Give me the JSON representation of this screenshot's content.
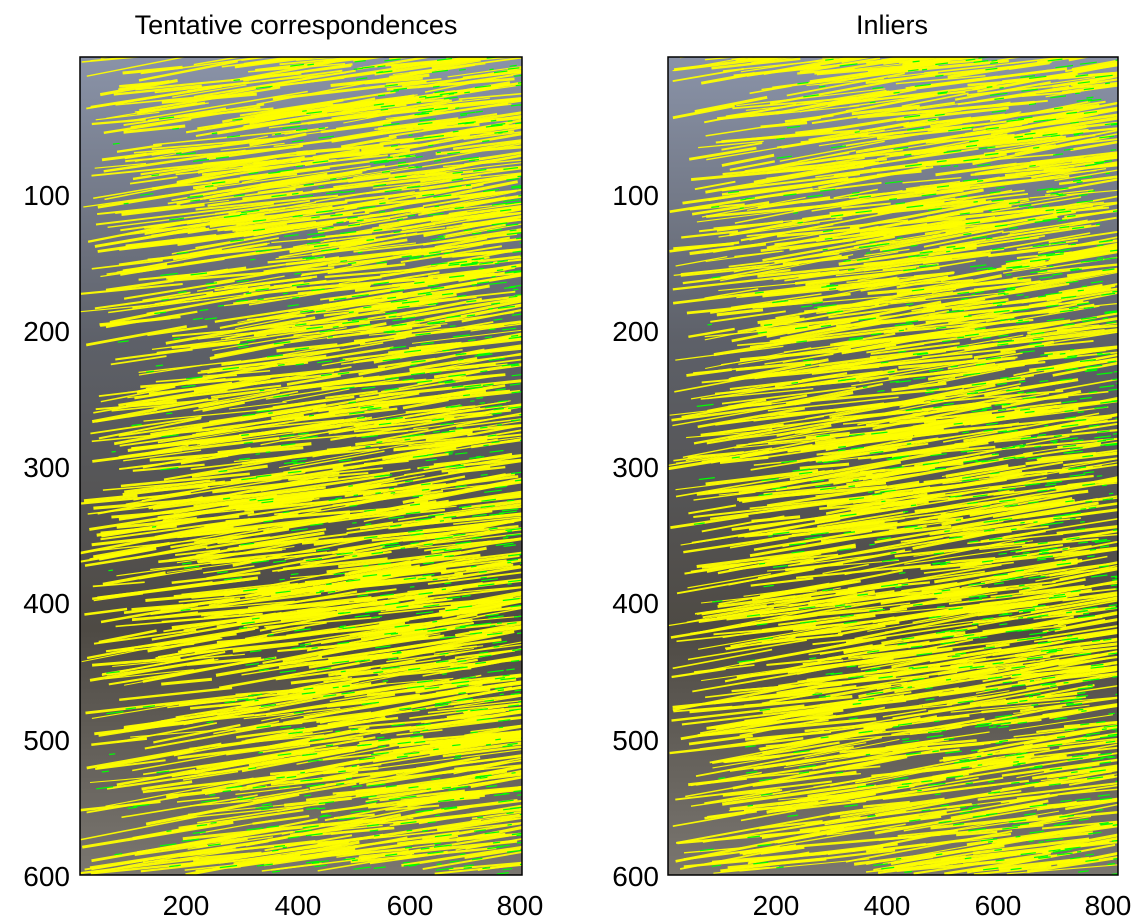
{
  "chart_data": [
    {
      "type": "scatter",
      "title": "Tentative correspondences",
      "xlabel": "",
      "ylabel": "",
      "xlim": [
        0,
        820
      ],
      "ylim": [
        600,
        0
      ],
      "y_reversed": true,
      "xticks": [
        200,
        400,
        600,
        800
      ],
      "yticks": [
        100,
        200,
        300,
        400,
        500,
        600
      ],
      "grid": false,
      "background": "photograph",
      "series": [
        {
          "color": "#ffff00",
          "values": []
        },
        {
          "color": "#00ff00",
          "values": []
        }
      ]
    },
    {
      "type": "scatter",
      "title": "Inliers",
      "xlabel": "",
      "ylabel": "",
      "xlim": [
        0,
        820
      ],
      "ylim": [
        600,
        0
      ],
      "y_reversed": true,
      "xticks": [
        200,
        400,
        600,
        800
      ],
      "yticks": [
        100,
        200,
        300,
        400,
        500,
        600
      ],
      "grid": false,
      "background": "photograph",
      "series": [
        {
          "color": "#ffff00",
          "values": []
        },
        {
          "color": "#00ff00",
          "values": []
        }
      ]
    }
  ]
}
